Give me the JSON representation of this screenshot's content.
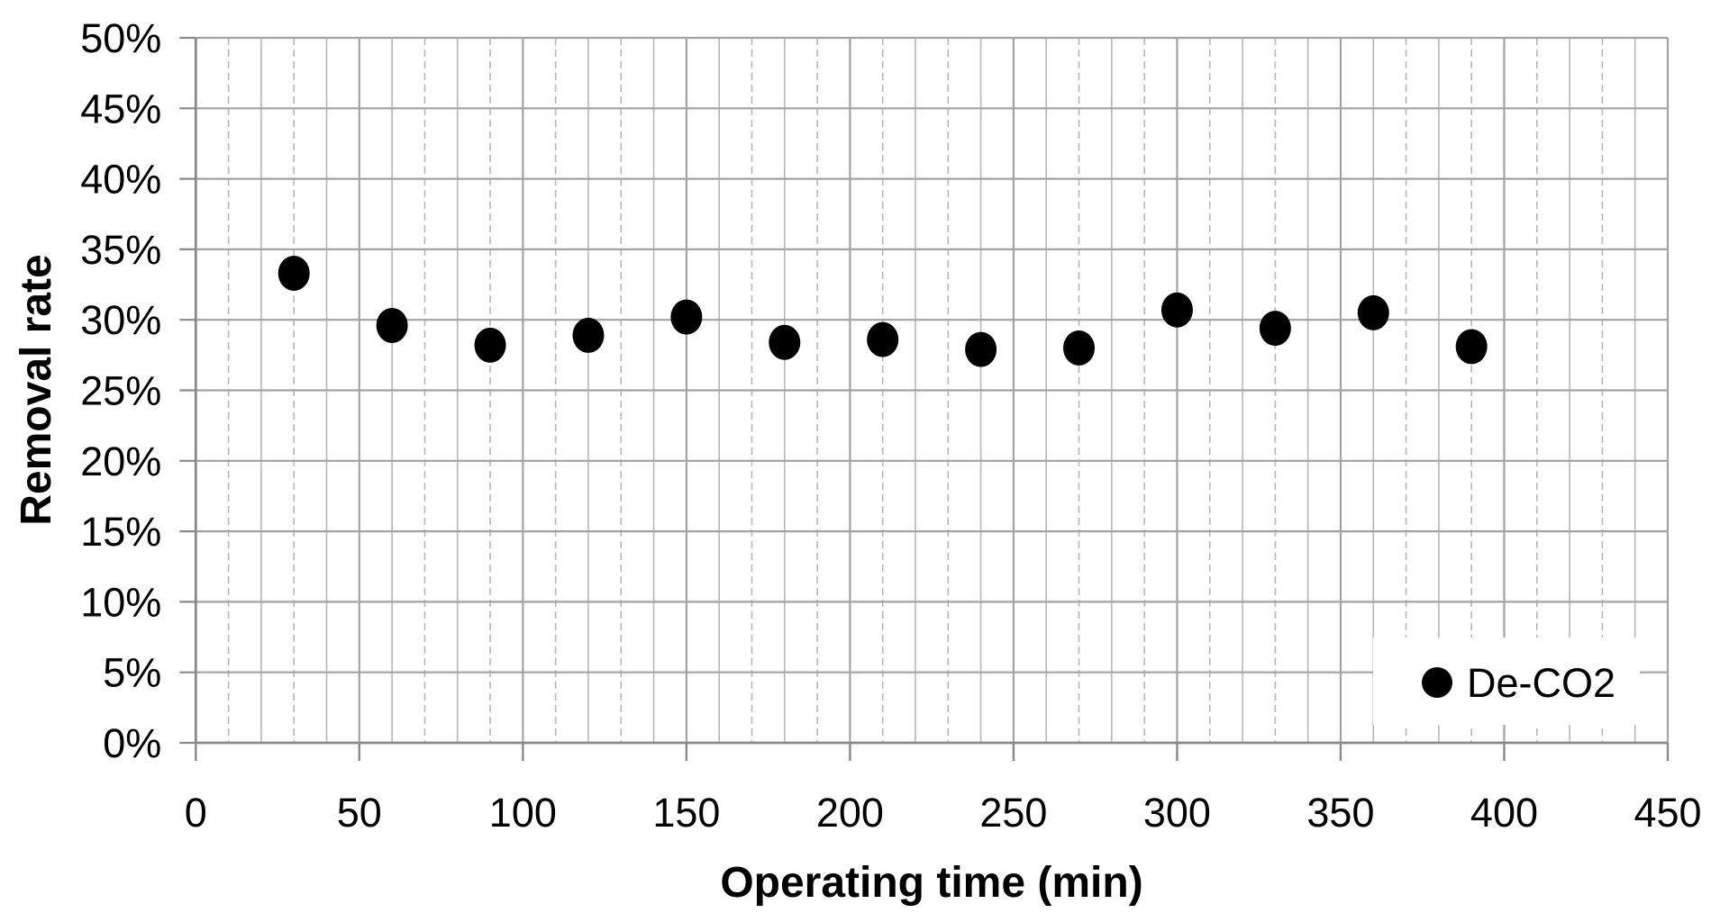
{
  "chart_data": {
    "type": "scatter",
    "title": "",
    "xlabel": "Operating time (min)",
    "ylabel": "Removal rate",
    "xlim": [
      0,
      450
    ],
    "ylim_percent": [
      0,
      50
    ],
    "x_major_step": 50,
    "x_minor_step": 10,
    "y_major_step": 5,
    "x_tick_labels": [
      "0",
      "50",
      "100",
      "150",
      "200",
      "250",
      "300",
      "350",
      "400",
      "450"
    ],
    "y_tick_labels": [
      "0%",
      "5%",
      "10%",
      "15%",
      "20%",
      "25%",
      "30%",
      "35%",
      "40%",
      "45%",
      "50%"
    ],
    "grid": "major-horizontal, major+minor-vertical",
    "legend": {
      "label": "De-CO2",
      "position": "inside-bottom-right",
      "marker": "filled-circle"
    },
    "series": [
      {
        "name": "De-CO2",
        "marker": "filled-circle",
        "color": "#000000",
        "x": [
          30,
          60,
          90,
          120,
          150,
          180,
          210,
          240,
          270,
          300,
          330,
          360,
          390
        ],
        "y_percent": [
          33.3,
          29.6,
          28.2,
          28.9,
          30.2,
          28.4,
          28.6,
          27.9,
          28.0,
          30.7,
          29.4,
          30.5,
          28.1
        ]
      }
    ]
  },
  "colors": {
    "background": "#ffffff",
    "axis_line": "#8a8a8a",
    "major_gridline": "#a3a3a3",
    "minor_gridline": "#b7b7b7",
    "marker": "#000000",
    "text": "#000000",
    "legend_background": "#ffffff"
  }
}
